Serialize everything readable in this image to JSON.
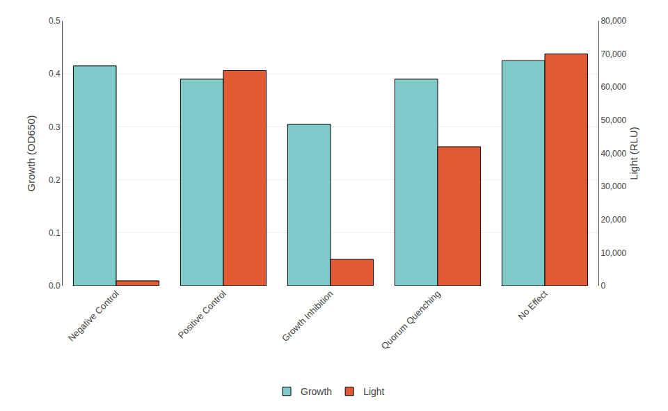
{
  "chart_data": {
    "type": "bar",
    "categories": [
      "Negative Control",
      "Positive Control",
      "Growth Inhibition",
      "Quorum Quenching",
      "No Effect"
    ],
    "series": [
      {
        "name": "Growth",
        "color": "#7ECAC8",
        "values": [
          0.415,
          0.39,
          0.305,
          0.39,
          0.425
        ]
      },
      {
        "name": "Light",
        "color": "#E05A36",
        "values": [
          1500,
          65000,
          8000,
          42000,
          70000
        ],
        "axis": "y2"
      }
    ],
    "ylabel": "Growth (OD650)",
    "y2label": "Light (RLU)",
    "ylim": [
      0,
      0.5
    ],
    "yticks": [
      {
        "value": 0,
        "label": "0.0"
      },
      0.1,
      0.2,
      0.3,
      0.4,
      0.5
    ],
    "y2lim": [
      0,
      80000
    ],
    "y2ticks": [
      0,
      {
        "value": 10000,
        "label": "10,000"
      },
      {
        "value": 20000,
        "label": "20,000"
      },
      {
        "value": 30000,
        "label": "30,000"
      },
      {
        "value": 40000,
        "label": "40,000"
      },
      {
        "value": 50000,
        "label": "50,000"
      },
      {
        "value": 60000,
        "label": "60,000"
      },
      {
        "value": 70000,
        "label": "70,000"
      },
      {
        "value": 80000,
        "label": "80,000"
      }
    ],
    "grid": true,
    "legend": "bottom"
  }
}
